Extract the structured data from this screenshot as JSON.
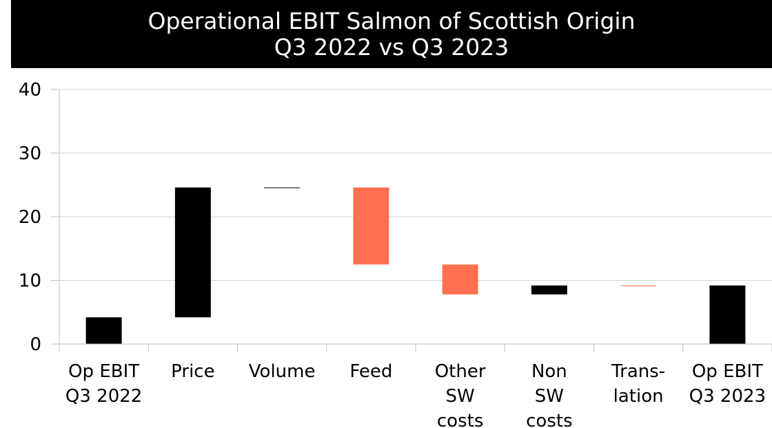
{
  "chart_data": {
    "type": "bar",
    "subtype": "waterfall",
    "title": "Operational EBIT Salmon of Scottish Origin",
    "subtitle": "Q3 2022 vs Q3 2023",
    "xlabel": "",
    "ylabel": "",
    "ylim": [
      0,
      40
    ],
    "yticks": [
      0,
      10,
      20,
      30,
      40
    ],
    "grid": true,
    "legend": "none",
    "categories": [
      {
        "lines": [
          "Op EBIT",
          "Q3 2022"
        ]
      },
      {
        "lines": [
          "Price"
        ]
      },
      {
        "lines": [
          "Volume"
        ]
      },
      {
        "lines": [
          "Feed"
        ]
      },
      {
        "lines": [
          "Other",
          "SW",
          "costs"
        ]
      },
      {
        "lines": [
          "Non",
          "SW",
          "costs"
        ]
      },
      {
        "lines": [
          "Trans-",
          "lation"
        ]
      },
      {
        "lines": [
          "Op EBIT",
          "Q3 2023"
        ]
      }
    ],
    "bars": [
      {
        "low": 0,
        "high": 4.2,
        "color": "#000000"
      },
      {
        "low": 4.2,
        "high": 24.6,
        "color": "#000000"
      },
      {
        "low": 24.5,
        "high": 24.6,
        "color": "#000000"
      },
      {
        "low": 12.5,
        "high": 24.6,
        "color": "#FF7050"
      },
      {
        "low": 7.8,
        "high": 12.5,
        "color": "#FF7050"
      },
      {
        "low": 7.8,
        "high": 9.2,
        "color": "#000000"
      },
      {
        "low": 9.15,
        "high": 9.2,
        "color": "#FF7050"
      },
      {
        "low": 0,
        "high": 9.2,
        "color": "#000000"
      }
    ]
  }
}
